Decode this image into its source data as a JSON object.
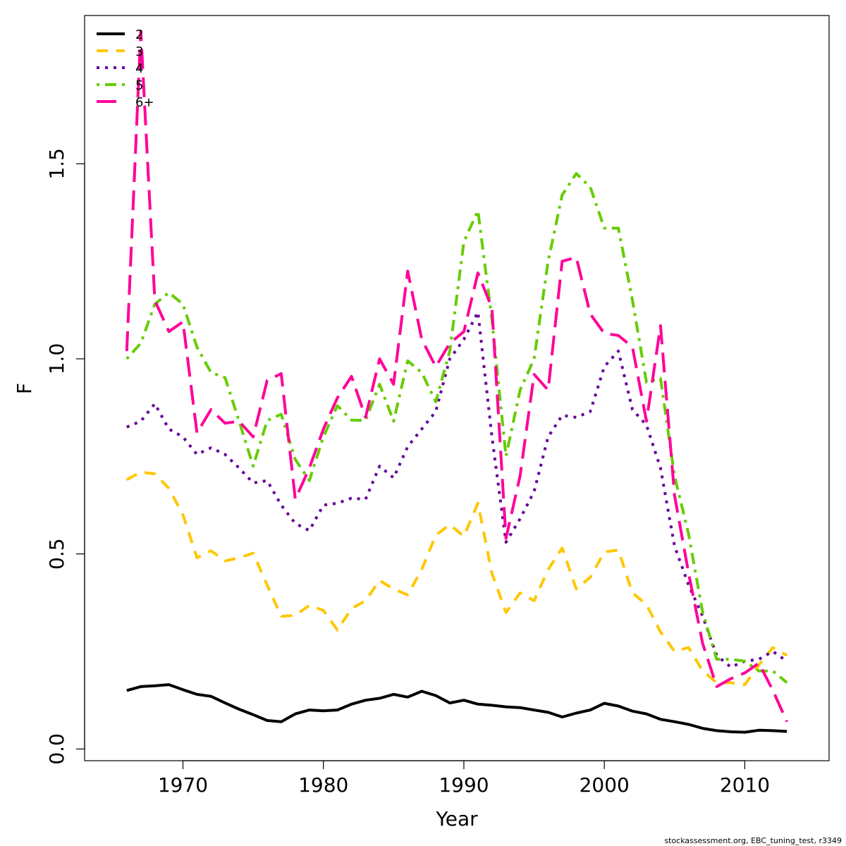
{
  "chart_data": {
    "type": "line",
    "title": "",
    "xlabel": "Year",
    "ylabel": "F",
    "xlim": [
      1963,
      2016
    ],
    "ylim": [
      -0.03,
      1.88
    ],
    "xticks": [
      1970,
      1980,
      1990,
      2000,
      2010
    ],
    "yticks": [
      0.0,
      0.5,
      1.0,
      1.5
    ],
    "ytick_labels": [
      "0.0",
      "0.5",
      "1.0",
      "1.5"
    ],
    "grid": false,
    "legend_position": "top-left",
    "x": [
      1966,
      1967,
      1968,
      1969,
      1970,
      1971,
      1972,
      1973,
      1974,
      1975,
      1976,
      1977,
      1978,
      1979,
      1980,
      1981,
      1982,
      1983,
      1984,
      1985,
      1986,
      1987,
      1988,
      1989,
      1990,
      1991,
      1992,
      1993,
      1994,
      1995,
      1996,
      1997,
      1998,
      1999,
      2000,
      2001,
      2002,
      2003,
      2004,
      2005,
      2006,
      2007,
      2008,
      2009,
      2010,
      2011,
      2012,
      2013
    ],
    "series": [
      {
        "name": "2",
        "color": "#000000",
        "dash": "solid",
        "width": 4,
        "values": [
          0.15,
          0.16,
          0.162,
          0.165,
          0.152,
          0.14,
          0.135,
          0.118,
          0.102,
          0.088,
          0.073,
          0.07,
          0.09,
          0.1,
          0.098,
          0.1,
          0.115,
          0.125,
          0.13,
          0.14,
          0.133,
          0.148,
          0.137,
          0.118,
          0.125,
          0.115,
          0.112,
          0.108,
          0.106,
          0.1,
          0.094,
          0.082,
          0.092,
          0.1,
          0.117,
          0.11,
          0.097,
          0.09,
          0.076,
          0.07,
          0.063,
          0.053,
          0.047,
          0.044,
          0.043,
          0.048,
          0.047,
          0.045
        ]
      },
      {
        "name": "3",
        "color": "#FFC700",
        "dash": "dashed",
        "width": 4,
        "values": [
          0.69,
          0.71,
          0.705,
          0.668,
          0.6,
          0.49,
          0.508,
          0.482,
          0.49,
          0.502,
          0.42,
          0.34,
          0.343,
          0.368,
          0.355,
          0.305,
          0.36,
          0.38,
          0.432,
          0.41,
          0.395,
          0.46,
          0.548,
          0.575,
          0.545,
          0.63,
          0.45,
          0.35,
          0.4,
          0.38,
          0.46,
          0.515,
          0.41,
          0.44,
          0.505,
          0.51,
          0.4,
          0.37,
          0.3,
          0.25,
          0.26,
          0.2,
          0.17,
          0.17,
          0.165,
          0.215,
          0.26,
          0.24
        ]
      },
      {
        "name": "4",
        "color": "#660099",
        "dash": "dotted",
        "width": 4,
        "values": [
          0.825,
          0.84,
          0.885,
          0.82,
          0.8,
          0.755,
          0.772,
          0.755,
          0.72,
          0.682,
          0.688,
          0.625,
          0.578,
          0.56,
          0.625,
          0.63,
          0.643,
          0.64,
          0.725,
          0.695,
          0.775,
          0.82,
          0.865,
          1.0,
          1.05,
          1.12,
          0.8,
          0.53,
          0.59,
          0.66,
          0.8,
          0.855,
          0.85,
          0.865,
          0.98,
          1.02,
          0.87,
          0.83,
          0.72,
          0.52,
          0.42,
          0.34,
          0.24,
          0.21,
          0.225,
          0.23,
          0.25,
          0.225
        ]
      },
      {
        "name": "5",
        "color": "#66CC00",
        "dash": "dotdash",
        "width": 4,
        "values": [
          1.0,
          1.04,
          1.14,
          1.17,
          1.14,
          1.03,
          0.965,
          0.952,
          0.84,
          0.725,
          0.842,
          0.858,
          0.742,
          0.688,
          0.8,
          0.88,
          0.843,
          0.842,
          0.935,
          0.84,
          0.995,
          0.965,
          0.89,
          1.02,
          1.3,
          1.38,
          1.1,
          0.75,
          0.92,
          1.0,
          1.25,
          1.42,
          1.475,
          1.44,
          1.335,
          1.335,
          1.15,
          0.94,
          0.95,
          0.7,
          0.55,
          0.35,
          0.23,
          0.23,
          0.225,
          0.2,
          0.2,
          0.17
        ]
      },
      {
        "name": "6+",
        "color": "#FF0099",
        "dash": "longdash",
        "width": 4,
        "values": [
          1.02,
          1.84,
          1.15,
          1.07,
          1.095,
          0.81,
          0.87,
          0.835,
          0.84,
          0.8,
          0.945,
          0.962,
          0.64,
          0.72,
          0.82,
          0.9,
          0.955,
          0.85,
          1.0,
          0.935,
          1.225,
          1.05,
          0.98,
          1.04,
          1.07,
          1.22,
          1.13,
          0.54,
          0.7,
          0.96,
          0.92,
          1.25,
          1.26,
          1.115,
          1.065,
          1.06,
          1.03,
          0.84,
          1.085,
          0.65,
          0.45,
          0.27,
          0.16,
          0.18,
          0.195,
          0.22,
          0.15,
          0.07
        ]
      }
    ]
  },
  "footer": "stockassessment.org, EBC_tuning_test, r3349"
}
